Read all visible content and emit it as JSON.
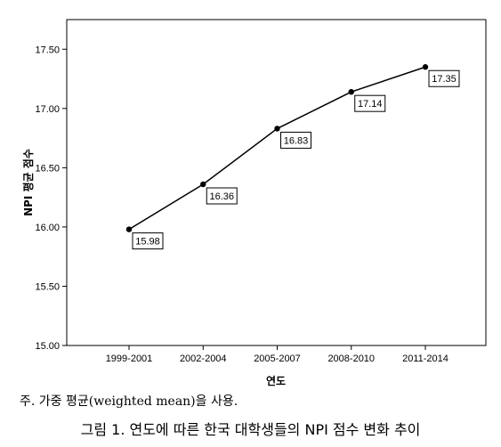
{
  "chart_data": {
    "type": "line",
    "categories": [
      "1999-2001",
      "2002-2004",
      "2005-2007",
      "2008-2010",
      "2011-2014"
    ],
    "series": [
      {
        "values": [
          15.98,
          16.36,
          16.83,
          17.14,
          17.35
        ],
        "data_labels": [
          "15.98",
          "16.36",
          "16.83",
          "17.14",
          "17.35"
        ]
      }
    ],
    "xlabel": "연도",
    "ylabel": "NPI 평균 점수",
    "ylim": [
      15.0,
      17.75
    ],
    "yticks": [
      15.0,
      15.5,
      16.0,
      16.5,
      17.0,
      17.5
    ],
    "ytick_labels": [
      "15.00",
      "15.50",
      "16.00",
      "16.50",
      "17.00",
      "17.50"
    ],
    "grid": false,
    "colors": {
      "line": "#000000",
      "marker": "#000000"
    }
  },
  "note": "주. 가중 평균(weighted mean)을 사용.",
  "caption": "그림 1. 연도에 따른 한국 대학생들의 NPI 점수 변화 추이"
}
